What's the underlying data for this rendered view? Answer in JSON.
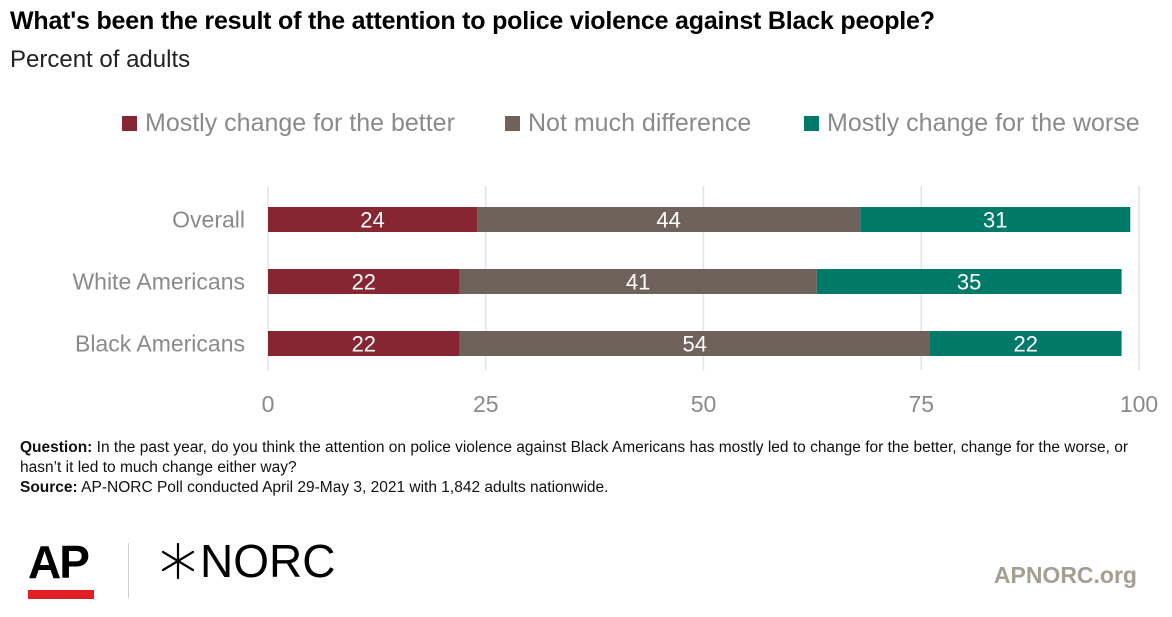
{
  "header": {
    "title": "What's been the result of the attention to police violence against Black people?",
    "subtitle": "Percent of adults"
  },
  "legend": {
    "items": [
      {
        "label": "Mostly change for the better",
        "color": "#862633"
      },
      {
        "label": "Not much difference",
        "color": "#6f625a"
      },
      {
        "label": "Mostly change for the worse",
        "color": "#007a68"
      }
    ]
  },
  "chart_data": {
    "type": "bar",
    "orientation": "horizontal",
    "stacked": true,
    "categories": [
      "Overall",
      "White Americans",
      "Black Americans"
    ],
    "series": [
      {
        "name": "Mostly change for the better",
        "color": "#862633",
        "values": [
          24,
          22,
          22
        ]
      },
      {
        "name": "Not much difference",
        "color": "#6f625a",
        "values": [
          44,
          41,
          54
        ]
      },
      {
        "name": "Mostly change for the worse",
        "color": "#007a68",
        "values": [
          31,
          35,
          22
        ]
      }
    ],
    "xlim": [
      0,
      100
    ],
    "xticks": [
      0,
      25,
      50,
      75,
      100
    ],
    "grid": true,
    "legend_position": "top"
  },
  "notes": {
    "question_label": "Question:",
    "question_text": " In the past year, do you think the attention on police violence against Black Americans has mostly led to change for the better, change for the worse, or hasn’t it led to much change either way?",
    "source_label": "Source:",
    "source_text": " AP-NORC Poll conducted April 29-May 3, 2021 with 1,842 adults nationwide."
  },
  "footer": {
    "ap_logo_text": "AP",
    "norc_logo_text": "NORC",
    "site": "APNORC.org"
  }
}
